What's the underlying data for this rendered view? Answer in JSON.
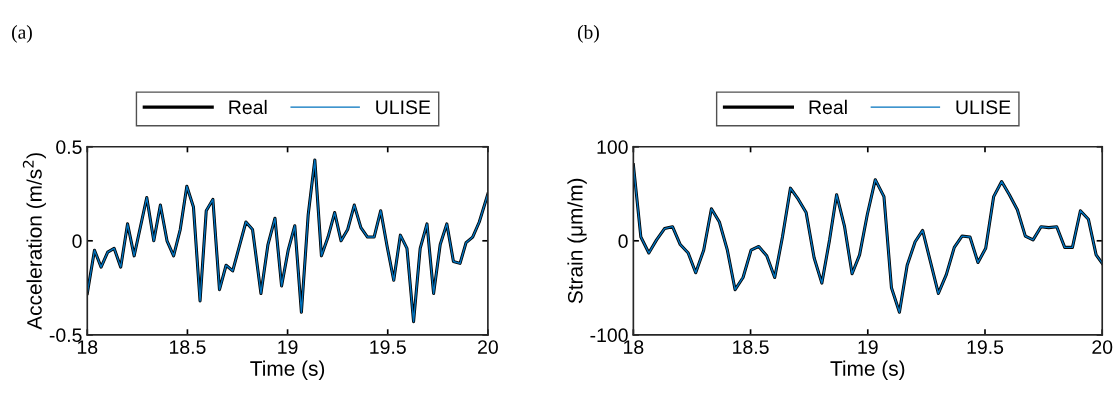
{
  "chart_data": [
    {
      "type": "line",
      "title": "(a)",
      "xlabel": "Time (s)",
      "ylabel": "Acceleration (m/s$^{2}$)",
      "xlim": [
        18,
        20
      ],
      "xticks": [
        18,
        18.5,
        19,
        19.5,
        20
      ],
      "ylim": [
        -0.5,
        0.5
      ],
      "yticks": [
        -0.5,
        0,
        0.5
      ],
      "legend": "top",
      "grid": false,
      "x": [
        18.0,
        18.036,
        18.069,
        18.102,
        18.134,
        18.167,
        18.201,
        18.234,
        18.297,
        18.332,
        18.365,
        18.398,
        18.431,
        18.464,
        18.497,
        18.53,
        18.563,
        18.594,
        18.627,
        18.66,
        18.693,
        18.726,
        18.759,
        18.792,
        18.825,
        18.867,
        18.902,
        18.937,
        18.97,
        19.003,
        19.036,
        19.069,
        19.103,
        19.136,
        19.169,
        19.202,
        19.235,
        19.267,
        19.3,
        19.333,
        19.366,
        19.399,
        19.432,
        19.465,
        19.497,
        19.53,
        19.563,
        19.596,
        19.629,
        19.662,
        19.696,
        19.729,
        19.762,
        19.795,
        19.828,
        19.861,
        19.891,
        19.924,
        19.957,
        20.0
      ],
      "series": [
        {
          "name": "Real",
          "color": "#000000",
          "values": [
            -0.28,
            -0.05,
            -0.14,
            -0.06,
            -0.04,
            -0.14,
            0.09,
            -0.08,
            0.23,
            0.0,
            0.19,
            0.0,
            -0.08,
            0.06,
            0.29,
            0.18,
            -0.32,
            0.16,
            0.22,
            -0.26,
            -0.13,
            -0.16,
            -0.03,
            0.1,
            0.06,
            -0.28,
            -0.02,
            0.12,
            -0.24,
            -0.05,
            0.08,
            -0.38,
            0.14,
            0.43,
            -0.08,
            0.02,
            0.15,
            0.0,
            0.06,
            0.19,
            0.07,
            0.02,
            0.02,
            0.16,
            -0.03,
            -0.21,
            0.03,
            -0.04,
            -0.43,
            -0.04,
            0.09,
            -0.28,
            -0.02,
            0.09,
            -0.11,
            -0.12,
            -0.01,
            0.02,
            0.1,
            0.25
          ]
        },
        {
          "name": "ULISE",
          "color": "#0072bd",
          "values": [
            -0.28,
            -0.05,
            -0.14,
            -0.06,
            -0.04,
            -0.14,
            0.09,
            -0.08,
            0.23,
            0.0,
            0.19,
            0.0,
            -0.08,
            0.06,
            0.29,
            0.18,
            -0.32,
            0.16,
            0.22,
            -0.26,
            -0.13,
            -0.16,
            -0.03,
            0.1,
            0.06,
            -0.28,
            -0.02,
            0.12,
            -0.24,
            -0.05,
            0.08,
            -0.38,
            0.14,
            0.43,
            -0.08,
            0.02,
            0.15,
            0.0,
            0.06,
            0.19,
            0.07,
            0.02,
            0.02,
            0.16,
            -0.03,
            -0.21,
            0.03,
            -0.04,
            -0.43,
            -0.04,
            0.09,
            -0.28,
            -0.02,
            0.09,
            -0.11,
            -0.12,
            -0.01,
            0.02,
            0.1,
            0.25
          ]
        }
      ]
    },
    {
      "type": "line",
      "title": "(b)",
      "xlabel": "Time (s)",
      "ylabel": "Strain (μm/m)",
      "xlim": [
        18,
        20
      ],
      "xticks": [
        18,
        18.5,
        19,
        19.5,
        20
      ],
      "ylim": [
        -100,
        100
      ],
      "yticks": [
        -100,
        0,
        100
      ],
      "legend": "top",
      "grid": false,
      "x": [
        18.0,
        18.032,
        18.066,
        18.099,
        18.133,
        18.167,
        18.2,
        18.234,
        18.266,
        18.3,
        18.333,
        18.367,
        18.401,
        18.434,
        18.468,
        18.502,
        18.535,
        18.569,
        18.603,
        18.636,
        18.67,
        18.704,
        18.737,
        18.771,
        18.804,
        18.837,
        18.867,
        18.901,
        18.933,
        18.965,
        18.998,
        19.032,
        19.069,
        19.101,
        19.135,
        19.168,
        19.202,
        19.234,
        19.268,
        19.301,
        19.335,
        19.369,
        19.402,
        19.436,
        19.47,
        19.503,
        19.537,
        19.571,
        19.604,
        19.638,
        19.672,
        19.705,
        19.739,
        19.772,
        19.806,
        19.84,
        19.873,
        19.907,
        19.941,
        19.974,
        20.0
      ],
      "series": [
        {
          "name": "Real",
          "color": "#000000",
          "values": [
            81,
            4,
            -13,
            1,
            13,
            15,
            -4,
            -13,
            -34,
            -10,
            34,
            20,
            -10,
            -52,
            -39,
            -10,
            -6,
            -16,
            -39,
            4,
            56,
            44,
            30,
            -18,
            -45,
            1,
            49,
            15,
            -35,
            -15,
            28,
            65,
            47,
            -50,
            -76,
            -26,
            -1,
            11,
            -23,
            -56,
            -36,
            -7,
            5,
            4,
            -23,
            -8,
            47,
            63,
            49,
            33,
            5,
            1,
            15,
            14,
            15,
            -7,
            -7,
            32,
            23,
            -15,
            -24
          ]
        },
        {
          "name": "ULISE",
          "color": "#0072bd",
          "values": [
            81,
            4,
            -13,
            1,
            13,
            15,
            -4,
            -13,
            -34,
            -10,
            34,
            20,
            -10,
            -52,
            -39,
            -10,
            -6,
            -16,
            -39,
            4,
            56,
            44,
            30,
            -18,
            -45,
            1,
            49,
            15,
            -35,
            -15,
            28,
            65,
            47,
            -50,
            -76,
            -26,
            -1,
            11,
            -23,
            -56,
            -36,
            -7,
            5,
            4,
            -23,
            -8,
            47,
            63,
            49,
            33,
            5,
            1,
            15,
            14,
            15,
            -7,
            -7,
            32,
            23,
            -15,
            -24
          ]
        }
      ]
    }
  ]
}
